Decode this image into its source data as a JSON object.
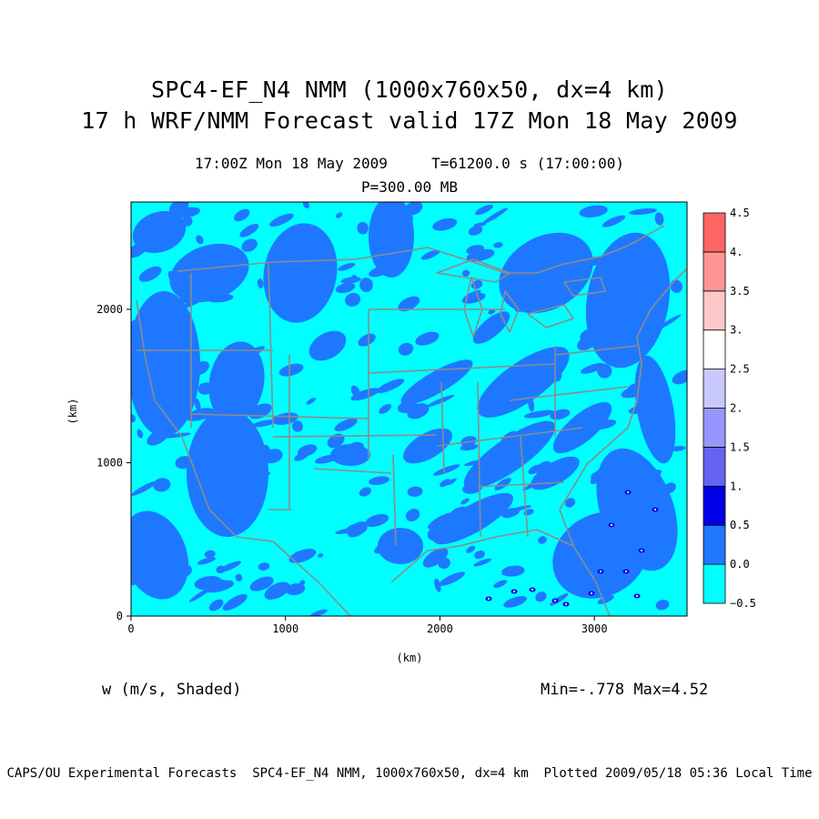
{
  "chart_data": {
    "type": "heatmap",
    "title": "SPC4-EF_N4 NMM (1000x760x50, dx=4 km)",
    "title2": "17 h WRF/NMM Forecast valid 17Z Mon 18 May 2009",
    "subtitle1": "17:00Z Mon 18 May 2009     T=61200.0 s (17:00:00)",
    "subtitle2": "P=300.00 MB",
    "xlabel": "(km)",
    "ylabel": "(km)",
    "xlim": [
      0,
      3600
    ],
    "ylim": [
      0,
      2700
    ],
    "x_ticks": [
      "0",
      "1000",
      "2000",
      "3000"
    ],
    "x_tick_values": [
      0,
      1000,
      2000,
      3000
    ],
    "y_ticks": [
      "0",
      "1000",
      "2000"
    ],
    "y_tick_values": [
      0,
      1000,
      2000
    ],
    "variable_label": "w (m/s, Shaded)",
    "min_max": "Min=-.778 Max=4.52",
    "colorbar": {
      "levels": [
        "−0.5",
        "0.0",
        "0.5",
        "1.",
        "1.5",
        "2.",
        "2.5",
        "3.",
        "3.5",
        "4.",
        "4.5"
      ],
      "level_values": [
        -0.5,
        0.0,
        0.5,
        1.0,
        1.5,
        2.0,
        2.5,
        3.0,
        3.5,
        4.0,
        4.5
      ],
      "colors": [
        "#00ffff",
        "#1e78ff",
        "#0000e6",
        "#6464f0",
        "#9696ff",
        "#c8c8ff",
        "#ffffff",
        "#ffc8c8",
        "#ff9696",
        "#ff6464"
      ]
    },
    "field_description": "vertical velocity shaded over contiguous United States map with state boundaries",
    "base_color": "#00ffff",
    "updraft_color": "#1e78ff",
    "boundary_color": "#8c8c8c"
  },
  "footer": "CAPS/OU Experimental Forecasts  SPC4-EF_N4 NMM, 1000x760x50, dx=4 km  Plotted 2009/05/18 05:36 Local Time"
}
